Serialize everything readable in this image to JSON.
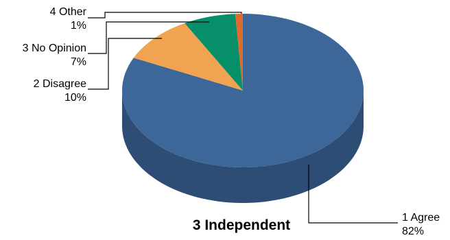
{
  "chart_data": {
    "type": "pie",
    "title": "3 Independent",
    "three_d": true,
    "legend": "none",
    "slices": [
      {
        "label": "1 Agree",
        "value": 82,
        "value_label": "82%",
        "color": "#3D6699",
        "side_color": "#2D4D75"
      },
      {
        "label": "2 Disagree",
        "value": 10,
        "value_label": "10%",
        "color": "#F0A452",
        "side_color": "#C07E36"
      },
      {
        "label": "3 No Opinion",
        "value": 7,
        "value_label": "7%",
        "color": "#068F69",
        "side_color": "#046B4F"
      },
      {
        "label": "4 Other",
        "value": 1,
        "value_label": "1%",
        "color": "#E06A2B",
        "side_color": "#B04E1C"
      }
    ]
  }
}
